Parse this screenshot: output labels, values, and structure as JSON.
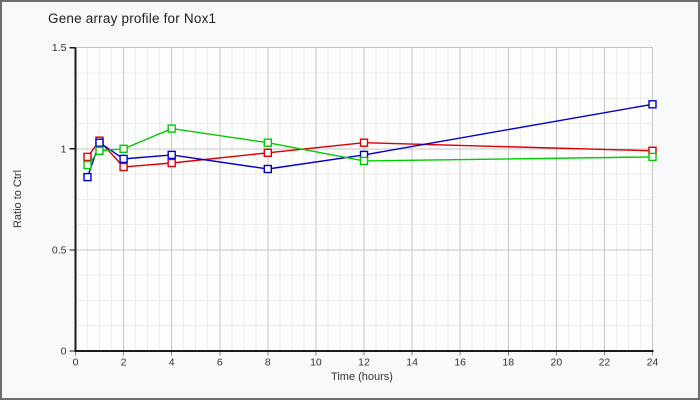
{
  "window": {
    "background": "#f8f9fa",
    "border_color": "#6e6e6e",
    "plot_background": "#fdfdfd"
  },
  "chart_data": {
    "type": "line",
    "title": "Gene array profile for Nox1",
    "xlabel": "Time (hours)",
    "ylabel": "Ratio to Ctrl",
    "xlim": [
      0,
      24
    ],
    "ylim": [
      0,
      1.5
    ],
    "x_ticks": [
      0,
      2,
      4,
      6,
      8,
      10,
      12,
      14,
      16,
      18,
      20,
      22,
      24
    ],
    "y_ticks": [
      0,
      0.5,
      1,
      1.5
    ],
    "y_tick_labels": [
      "0",
      "0.5",
      "1",
      "1.5"
    ],
    "x_minor_step": 0.5,
    "y_minor_step": 0.125,
    "grid": true,
    "legend_position": "none",
    "marker": "open-square",
    "x": [
      0.5,
      1,
      2,
      4,
      8,
      12,
      24
    ],
    "series": [
      {
        "name": "red-series",
        "color": "#dd0000",
        "values": [
          0.96,
          1.04,
          0.91,
          0.93,
          0.98,
          1.03,
          0.99
        ]
      },
      {
        "name": "blue-series",
        "color": "#0000cc",
        "values": [
          0.86,
          1.03,
          0.95,
          0.97,
          0.9,
          0.97,
          1.22
        ]
      },
      {
        "name": "green-series",
        "color": "#00cc00",
        "values": [
          0.92,
          0.99,
          1.0,
          1.1,
          1.03,
          0.94,
          0.96
        ]
      }
    ],
    "grid_colors": {
      "minor": "#ededed",
      "major": "#c6c6c6",
      "spine": "#1a1a1a",
      "x_tick_mark": "#888888"
    }
  }
}
